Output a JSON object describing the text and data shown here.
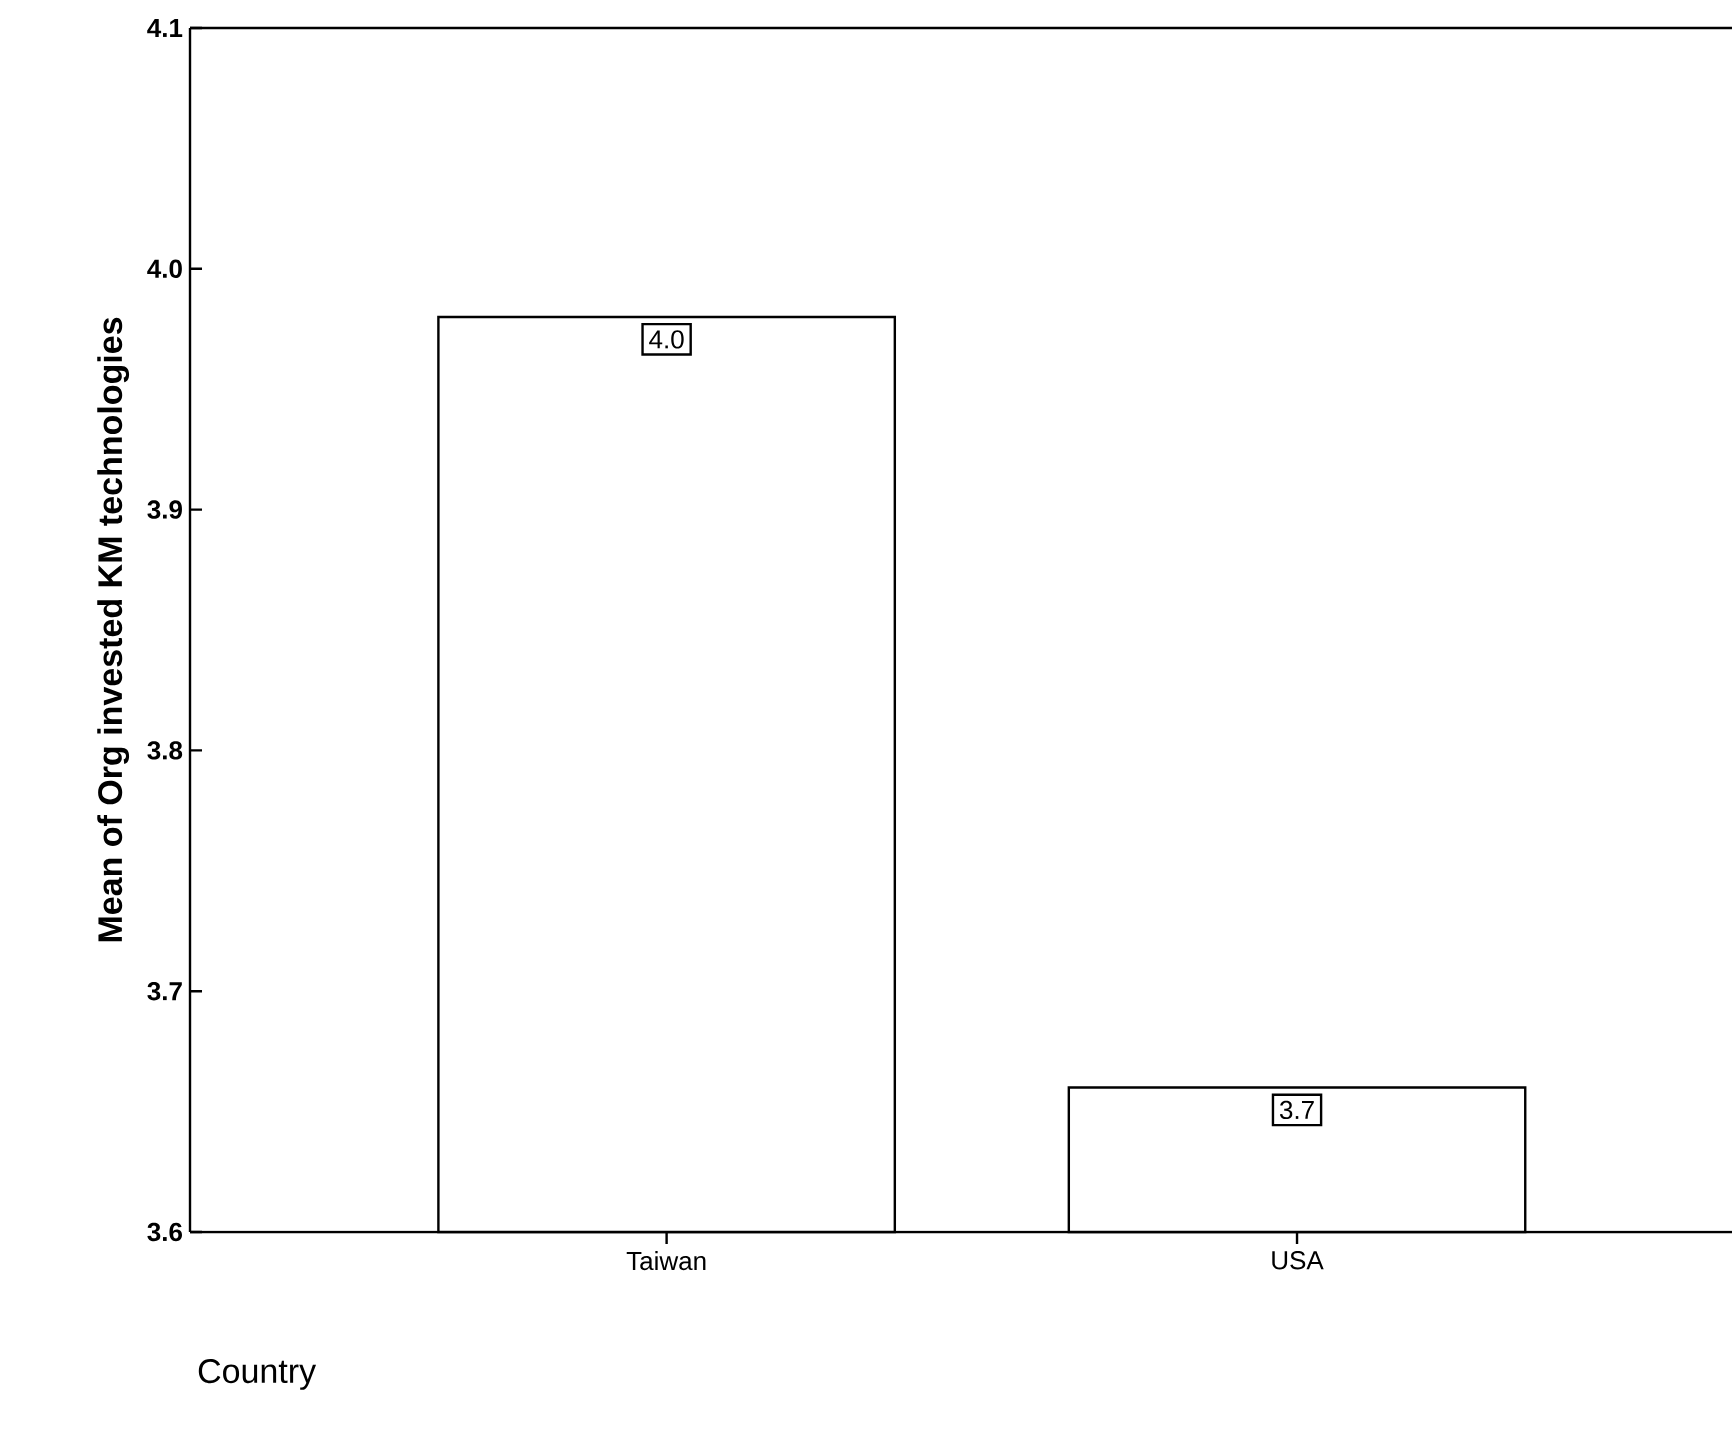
{
  "chart_data": {
    "type": "bar",
    "xlabel": "Country",
    "ylabel": "Mean of Org invested KM technologies",
    "categories": [
      "Taiwan",
      "USA"
    ],
    "values": [
      3.98,
      3.66
    ],
    "value_labels": [
      "4.0",
      "3.7"
    ],
    "color": "#ffffff",
    "ylim": [
      3.6,
      4.1
    ],
    "yticks": [
      3.6,
      3.7,
      3.8,
      3.9,
      {
        "value": 4.0,
        "label": "4.0"
      },
      4.1
    ]
  }
}
